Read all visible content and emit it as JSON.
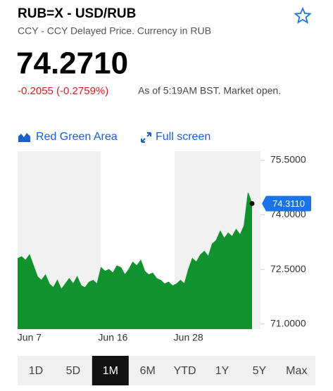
{
  "header": {
    "title": "RUB=X - USD/RUB",
    "subtitle": "CCY - CCY Delayed Price. Currency in RUB",
    "price": "74.2710",
    "change": "-0.2055 (-0.2759%)",
    "as_of": "As of 5:19AM BST. Market open."
  },
  "controls": {
    "chart_style": "Red Green Area",
    "full_screen": "Full screen"
  },
  "chart_data": {
    "type": "area",
    "categories": [
      null,
      null,
      null,
      "Jun 7",
      null,
      null,
      null,
      null,
      null,
      null,
      null,
      null,
      null,
      null,
      null,
      null,
      null,
      null,
      null,
      null,
      null,
      null,
      null,
      null,
      "Jun 16",
      null,
      null,
      null,
      null,
      null,
      null,
      null,
      null,
      null,
      null,
      null,
      null,
      null,
      null,
      null,
      null,
      null,
      null,
      "Jun 28",
      null,
      null,
      null,
      null,
      null,
      null,
      null,
      null,
      null,
      null,
      null,
      null,
      null,
      null,
      null,
      null
    ],
    "values": [
      72.8,
      72.85,
      72.75,
      72.9,
      72.6,
      72.3,
      72.2,
      72.35,
      72.1,
      72.0,
      72.2,
      71.95,
      72.1,
      72.25,
      72.1,
      72.3,
      72.05,
      72.0,
      72.15,
      72.2,
      72.1,
      72.55,
      72.45,
      72.5,
      72.4,
      72.6,
      72.55,
      72.35,
      72.5,
      72.7,
      72.6,
      72.75,
      72.45,
      72.35,
      72.4,
      72.25,
      72.2,
      72.1,
      72.15,
      72.05,
      72.1,
      72.2,
      72.1,
      72.5,
      72.8,
      72.7,
      72.9,
      73.0,
      72.85,
      73.2,
      73.3,
      73.55,
      73.35,
      73.5,
      73.4,
      73.6,
      73.45,
      73.7,
      74.6,
      74.311
    ],
    "value_labels": [
      null,
      null,
      null,
      null,
      null,
      null,
      null,
      null,
      null,
      null,
      null,
      null,
      null,
      null,
      null,
      null,
      null,
      null,
      null,
      null,
      null,
      null,
      null,
      null,
      null,
      null,
      null,
      null,
      null,
      null,
      null,
      null,
      null,
      null,
      null,
      null,
      null,
      null,
      null,
      null,
      null,
      null,
      null,
      null,
      null,
      null,
      null,
      null,
      null,
      null,
      null,
      null,
      null,
      null,
      null,
      null,
      null,
      null,
      null,
      "74.3110"
    ],
    "color": "#12922f",
    "ylim": [
      70.86,
      75.75
    ],
    "yticks": [
      {
        "value": 71,
        "label": "71.0000"
      },
      {
        "value": 72.5,
        "label": "72.5000"
      },
      {
        "value": 74,
        "label": "74.0000"
      },
      {
        "value": 75.5,
        "label": "75.5000"
      }
    ]
  },
  "ranges": {
    "options": [
      "1D",
      "5D",
      "1M",
      "6M",
      "YTD",
      "1Y",
      "5Y",
      "Max"
    ],
    "selected": 2
  }
}
